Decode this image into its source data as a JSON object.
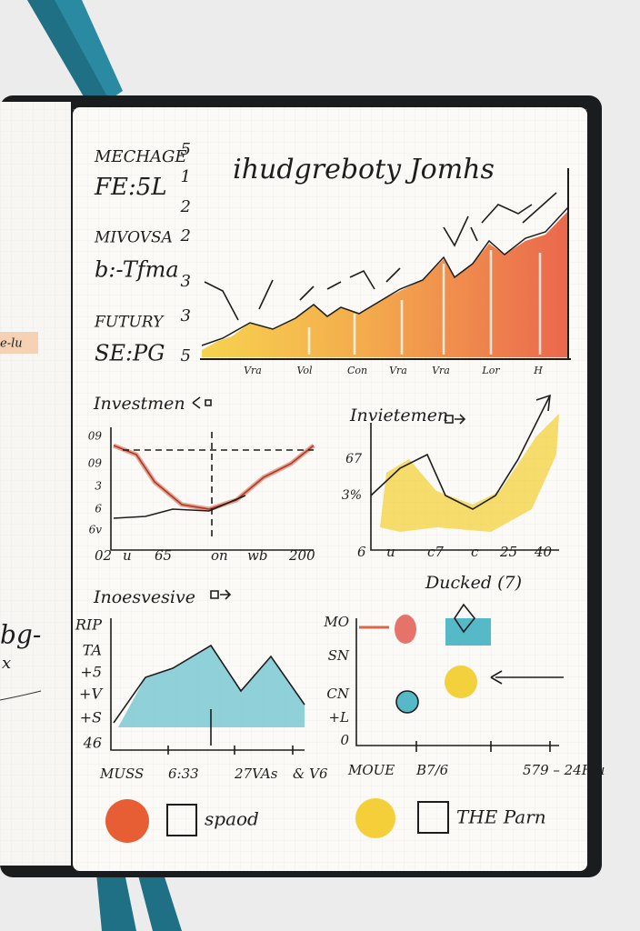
{
  "left_page": {
    "notes": [
      "e-lu",
      "bg-",
      "x"
    ]
  },
  "main_chart": {
    "title": "ihudgreboty Jomhs",
    "side_labels": [
      "MECHAGE",
      "FE:5L",
      "MIVOVSA",
      "b:-Tfma",
      "FUTURY",
      "SE:PG"
    ],
    "y_labels": [
      "5",
      "1",
      "2",
      "2",
      "3",
      "3",
      "5"
    ],
    "x_labels": [
      "Vra",
      "Vol",
      "Con",
      "Vra",
      "Vra",
      "Lor",
      "H"
    ]
  },
  "panels": [
    {
      "title": "Investmen",
      "y_labels": [
        "09",
        "09",
        "3",
        "6",
        "6v"
      ],
      "x_labels": [
        "02",
        "u",
        "65",
        "on",
        "wb",
        "200"
      ]
    },
    {
      "title": "Invietemen",
      "y_labels": [
        "67",
        "3%"
      ],
      "x_labels": [
        "6",
        "u",
        "c7",
        "c",
        "25",
        "40"
      ]
    },
    {
      "title": "Inoesvesive",
      "y_labels": [
        "RIP",
        "TA",
        "+5",
        "+V",
        "+S",
        "46"
      ],
      "x_labels": [
        "MUSS",
        "6:33",
        "27VAs",
        "& V6"
      ]
    },
    {
      "title": "Ducked (7)",
      "y_labels": [
        "MO",
        "SN",
        "CN",
        "+L",
        "0"
      ],
      "x_labels": [
        "MOUE",
        "B7/6",
        "579 – 24Ffu"
      ]
    }
  ],
  "legend": [
    {
      "label": "spaod"
    },
    {
      "label": "THE Parn"
    }
  ]
}
